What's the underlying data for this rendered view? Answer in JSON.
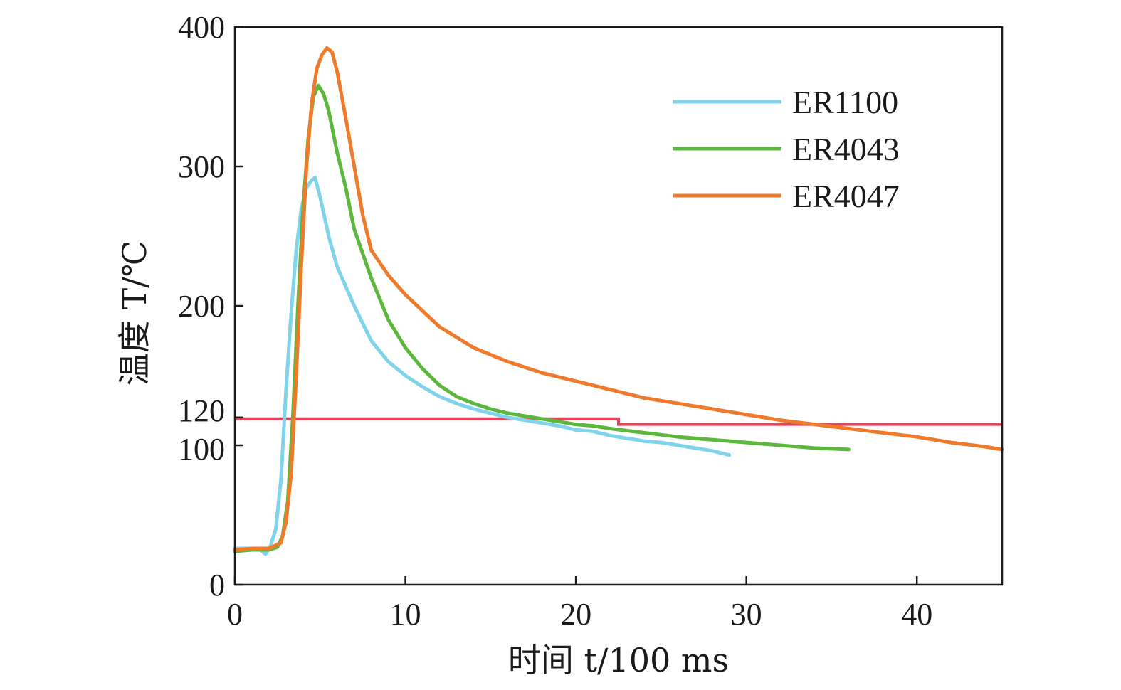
{
  "chart_data": {
    "type": "line",
    "xlabel": "时间 t/100 ms",
    "ylabel": "温度 T/℃",
    "xlim": [
      0,
      45
    ],
    "ylim": [
      0,
      400
    ],
    "x_ticks": [
      0,
      10,
      20,
      30,
      40
    ],
    "y_ticks": [
      0,
      100,
      120,
      200,
      300,
      400
    ],
    "grid": false,
    "legend_position": "top-right",
    "series": [
      {
        "name": "ER1100",
        "color": "#7fd3ea",
        "x": [
          0,
          1.0,
          1.5,
          1.8,
          2.1,
          2.4,
          2.7,
          3.0,
          3.3,
          3.6,
          3.9,
          4.2,
          4.5,
          4.7,
          5.0,
          5.5,
          6.0,
          7.0,
          8.0,
          9.0,
          10.0,
          11.0,
          12.0,
          13.0,
          14.0,
          15.0,
          16.0,
          17.0,
          18.0,
          19.0,
          20.0,
          21.0,
          22.0,
          23.0,
          24.0,
          25.0,
          26.0,
          27.0,
          28.0,
          29.0
        ],
        "y": [
          26,
          26,
          25,
          22,
          28,
          40,
          75,
          140,
          195,
          240,
          270,
          285,
          290,
          292,
          278,
          250,
          228,
          200,
          175,
          160,
          150,
          142,
          135,
          130,
          126,
          123,
          120,
          118,
          116,
          114,
          111,
          110,
          107,
          105,
          103,
          102,
          100,
          98,
          96,
          93
        ]
      },
      {
        "name": "ER4043",
        "color": "#5cb83c",
        "x": [
          0,
          1.0,
          2.0,
          2.5,
          2.8,
          3.1,
          3.4,
          3.7,
          4.0,
          4.3,
          4.6,
          4.9,
          5.2,
          5.5,
          6.0,
          6.5,
          7.0,
          8.0,
          9.0,
          10.0,
          11.0,
          12.0,
          13.0,
          14.0,
          15.0,
          16.0,
          17.0,
          18.0,
          19.0,
          20.0,
          21.0,
          22.0,
          24.0,
          26.0,
          28.0,
          30.0,
          32.0,
          34.0,
          36.0
        ],
        "y": [
          24,
          25,
          25,
          27,
          35,
          60,
          120,
          200,
          270,
          320,
          350,
          358,
          352,
          340,
          310,
          285,
          255,
          220,
          190,
          170,
          155,
          143,
          135,
          130,
          126,
          123,
          121,
          119,
          117,
          115,
          114,
          112,
          109,
          106,
          104,
          102,
          100,
          98,
          97
        ]
      },
      {
        "name": "ER4047",
        "color": "#f07a2c",
        "x": [
          0,
          1.0,
          2.0,
          2.7,
          3.0,
          3.3,
          3.6,
          3.9,
          4.2,
          4.5,
          4.8,
          5.1,
          5.4,
          5.7,
          6.0,
          6.5,
          7.0,
          7.5,
          8.0,
          9.0,
          10.0,
          12.0,
          14.0,
          16.0,
          18.0,
          20.0,
          22.0,
          24.0,
          26.0,
          28.0,
          30.0,
          32.0,
          34.0,
          36.0,
          38.0,
          40.0,
          42.0,
          44.0,
          45.0
        ],
        "y": [
          25,
          26,
          26,
          30,
          45,
          80,
          150,
          230,
          300,
          345,
          370,
          380,
          385,
          382,
          368,
          335,
          300,
          265,
          240,
          222,
          208,
          185,
          170,
          160,
          152,
          146,
          140,
          134,
          130,
          126,
          122,
          118,
          115,
          112,
          109,
          106,
          102,
          99,
          97
        ]
      }
    ],
    "reference_lines": [
      {
        "color": "#e8435b",
        "points": [
          [
            0,
            119
          ],
          [
            22.5,
            119
          ],
          [
            22.5,
            115
          ],
          [
            45,
            115
          ]
        ]
      }
    ]
  }
}
